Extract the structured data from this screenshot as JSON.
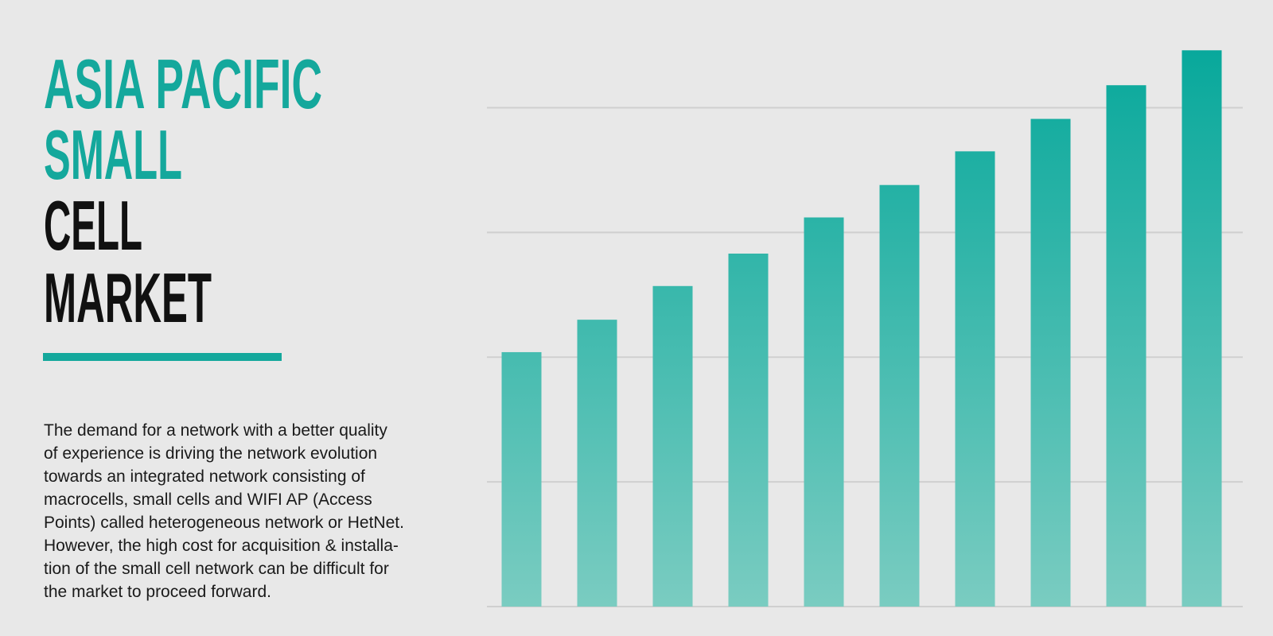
{
  "header": {
    "title_lines": [
      "ASIA PACIFIC",
      "SMALL",
      "CELL",
      "MARKET"
    ]
  },
  "body": {
    "lines": [
      "The demand for a network with a better quality",
      "of experience is driving the network evolution",
      "towards an integrated network consisting of",
      "macrocells, small cells and WIFI AP (Access",
      "Points) called heterogeneous network or HetNet.",
      "However, the high cost for acquisition & installa-",
      "tion of the small cell network can be difficult for",
      "the market to proceed forward."
    ]
  },
  "chart_data": {
    "type": "bar",
    "categories": [
      null,
      null,
      null,
      null,
      null,
      null,
      null,
      null,
      null,
      null
    ],
    "values": [
      2.04,
      2.3,
      2.57,
      2.83,
      3.12,
      3.38,
      3.65,
      3.91,
      4.18,
      4.46
    ],
    "color": "#07a89b",
    "color_bottom": "#7accc1",
    "ylim": [
      0,
      4.5
    ],
    "gridlines": [
      0,
      1,
      2,
      3,
      4
    ],
    "grid": true
  }
}
